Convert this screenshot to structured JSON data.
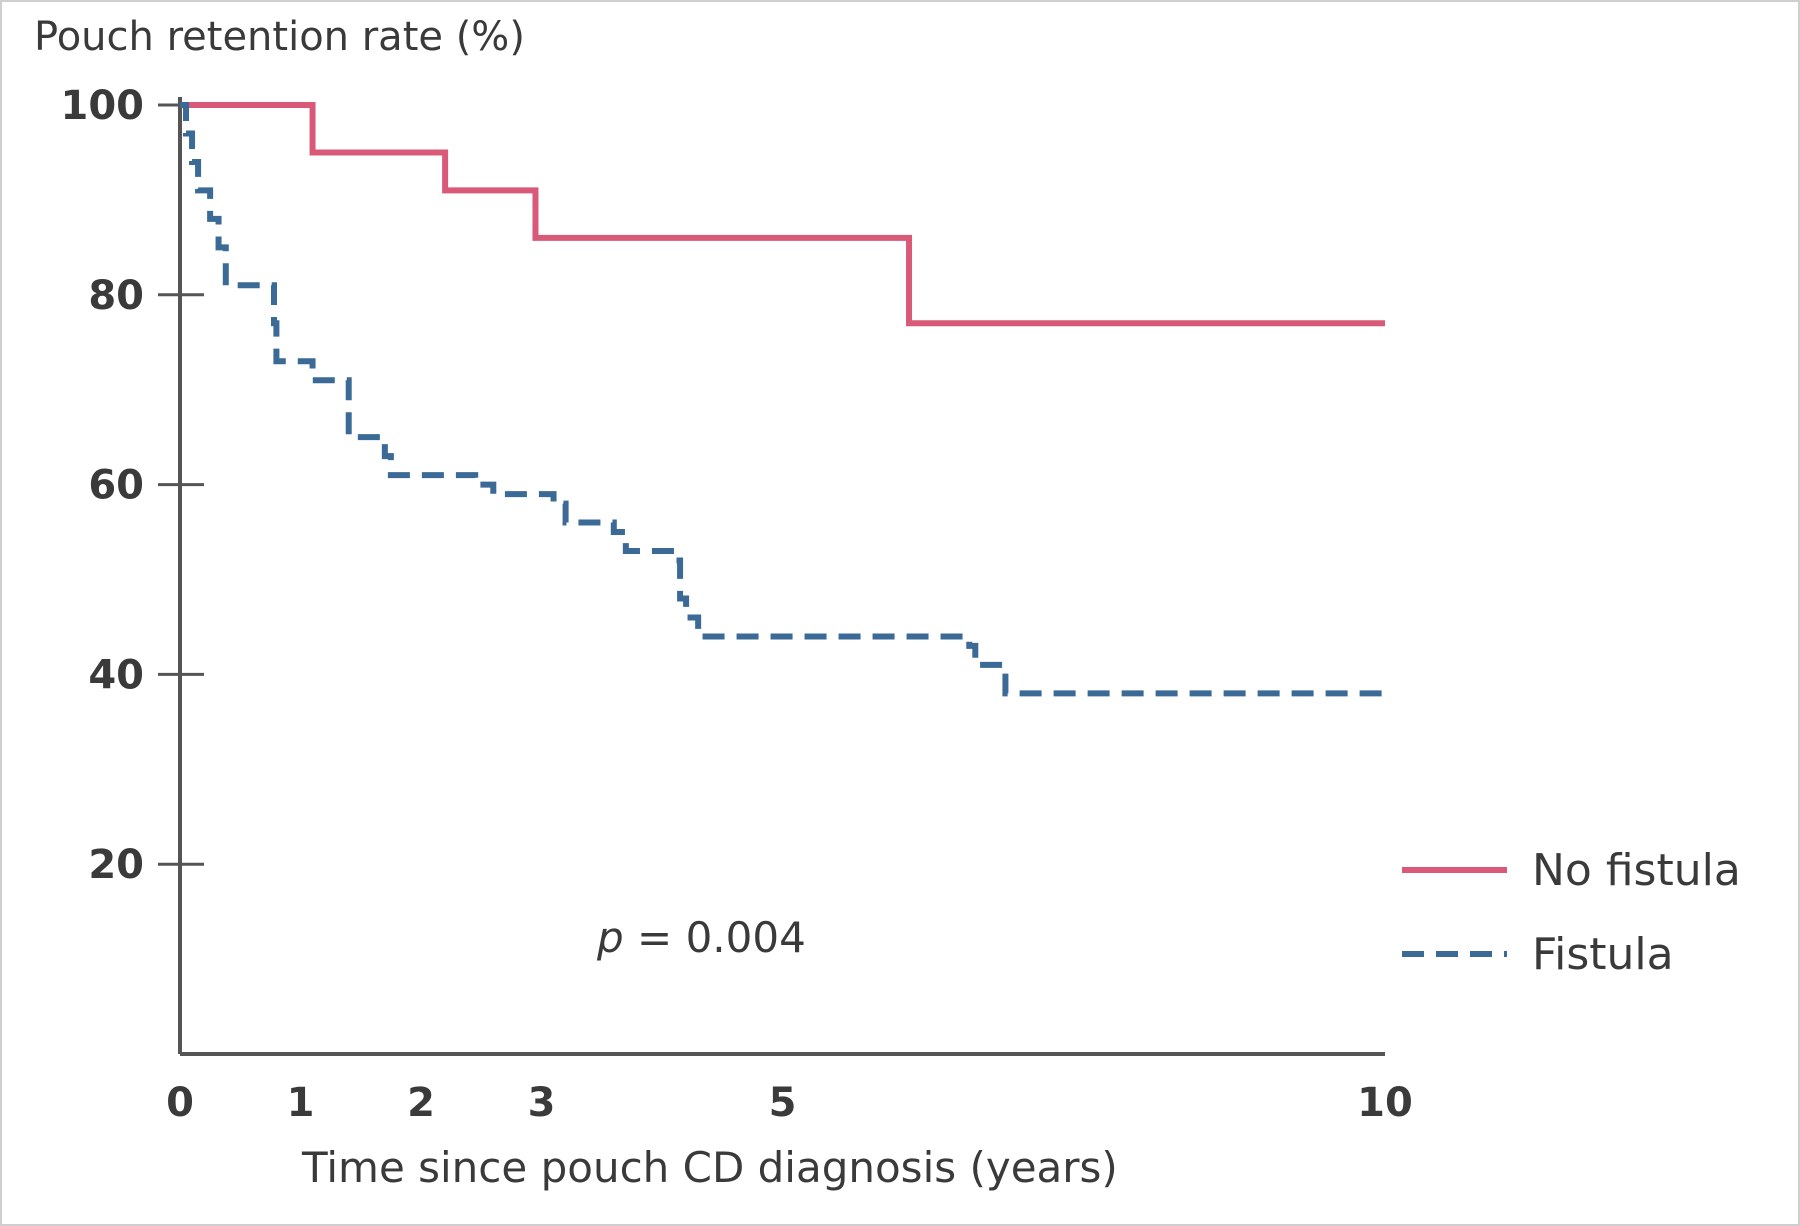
{
  "chart_data": {
    "type": "line",
    "title": "",
    "ylabel": "Pouch retention rate (%)",
    "xlabel": "Time since pouch CD diagnosis (years)",
    "xlim": [
      0,
      10
    ],
    "ylim": [
      0,
      100
    ],
    "x_ticks": [
      0,
      1,
      2,
      3,
      5,
      10
    ],
    "y_ticks": [
      20,
      40,
      60,
      80,
      100
    ],
    "annotation": "p = 0.004",
    "annotation_p": "p",
    "annotation_rest": " = 0.004",
    "legend_position": "bottom-right",
    "grid": false,
    "series": [
      {
        "name": "No fistula",
        "style": "solid",
        "color": "#d85a78",
        "steps": [
          [
            0,
            100
          ],
          [
            1.1,
            95
          ],
          [
            2.2,
            91
          ],
          [
            2.95,
            86
          ],
          [
            6.05,
            77
          ],
          [
            10,
            77
          ]
        ]
      },
      {
        "name": "Fistula",
        "style": "dashed",
        "color": "#3b6a96",
        "steps": [
          [
            0,
            100
          ],
          [
            0.05,
            97
          ],
          [
            0.1,
            94
          ],
          [
            0.15,
            91
          ],
          [
            0.25,
            88
          ],
          [
            0.32,
            85
          ],
          [
            0.38,
            81
          ],
          [
            0.78,
            77
          ],
          [
            0.8,
            73
          ],
          [
            1.1,
            71
          ],
          [
            1.4,
            69
          ],
          [
            1.4,
            65
          ],
          [
            1.7,
            63
          ],
          [
            1.75,
            61
          ],
          [
            2.45,
            60
          ],
          [
            2.6,
            59
          ],
          [
            3.1,
            58
          ],
          [
            3.2,
            56
          ],
          [
            3.6,
            55
          ],
          [
            3.7,
            53
          ],
          [
            4.1,
            52
          ],
          [
            4.15,
            48
          ],
          [
            4.2,
            46
          ],
          [
            4.3,
            44
          ],
          [
            6.55,
            43
          ],
          [
            6.6,
            41
          ],
          [
            6.85,
            38
          ],
          [
            10,
            38
          ]
        ]
      }
    ]
  }
}
